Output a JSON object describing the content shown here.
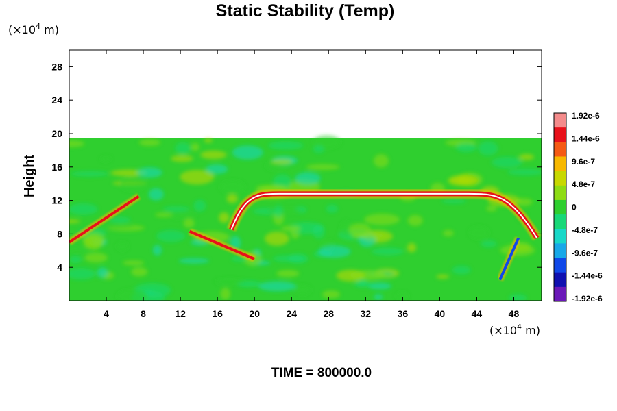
{
  "chart_data": {
    "type": "heatmap",
    "title": "Static Stability (Temp)",
    "ylabel": "Height",
    "xlabel": "",
    "x_unit_base": "(×10",
    "x_unit_exp": "4",
    "x_unit_suffix": " m)",
    "y_unit_base": "(×10",
    "y_unit_exp": "4",
    "y_unit_suffix": " m)",
    "xlim": [
      0,
      51
    ],
    "ylim": [
      0,
      30
    ],
    "x_ticks": [
      4,
      8,
      12,
      16,
      20,
      24,
      28,
      32,
      36,
      40,
      44,
      48
    ],
    "y_ticks": [
      4,
      8,
      12,
      16,
      20,
      24,
      28
    ],
    "data_top": 19.5,
    "time_label": "TIME = 800000.0",
    "colorbar": {
      "labels": [
        "1.92e-6",
        "1.44e-6",
        "9.6e-7",
        "4.8e-7",
        "0",
        "-4.8e-7",
        "-9.6e-7",
        "-1.44e-6",
        "-1.92e-6"
      ],
      "colors": [
        "#f48b8b",
        "#e8111a",
        "#f55a14",
        "#f7b800",
        "#c8d800",
        "#8edc14",
        "#2fcf2f",
        "#18d878",
        "#18d8c8",
        "#18a8e8",
        "#1048e8",
        "#1010b0",
        "#6a18b8"
      ]
    },
    "features": [
      {
        "name": "main-arc",
        "type": "arc",
        "from_x": 17.5,
        "from_y": 8.5,
        "to_x": 50.5,
        "to_y": 7.5,
        "peak_y": 12.8,
        "color": "#e8111a"
      },
      {
        "name": "left-diagonal",
        "type": "line",
        "from_x": 0,
        "from_y": 7.0,
        "to_x": 7.5,
        "to_y": 12.5,
        "color": "#e8111a"
      },
      {
        "name": "low-left-streak",
        "type": "line",
        "from_x": 13,
        "from_y": 8.3,
        "to_x": 20,
        "to_y": 5.0,
        "color": "#e8111a"
      },
      {
        "name": "top-band",
        "type": "band",
        "from_x": 0,
        "to_x": 51,
        "y": 19.2,
        "color": "#18a8e8"
      },
      {
        "name": "right-diagonal",
        "type": "line",
        "from_x": 46.5,
        "from_y": 2.5,
        "to_x": 48.5,
        "to_y": 7.5,
        "color": "#1048e8"
      }
    ]
  }
}
